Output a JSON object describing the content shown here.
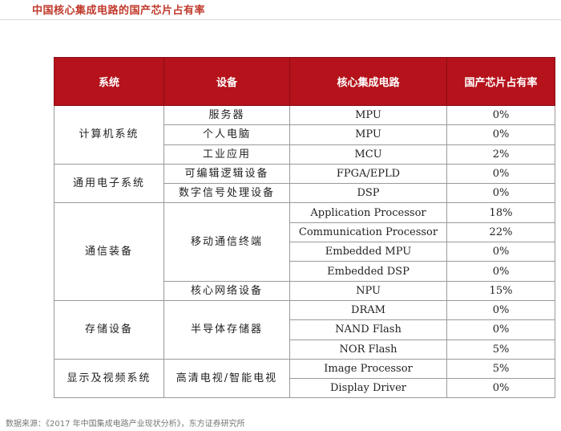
{
  "title": "中国核心集成电路的国产芯片占有率",
  "headers": [
    "系统",
    "设备",
    "核心集成电路",
    "国产芯片占有率"
  ],
  "groups": [
    {
      "system": "计算机系统",
      "devices": [
        {
          "device": "服务器",
          "chips": [
            {
              "ic": "MPU",
              "share": "0%"
            }
          ]
        },
        {
          "device": "个人电脑",
          "chips": [
            {
              "ic": "MPU",
              "share": "0%"
            }
          ]
        },
        {
          "device": "工业应用",
          "chips": [
            {
              "ic": "MCU",
              "share": "2%"
            }
          ]
        }
      ]
    },
    {
      "system": "通用电子系统",
      "devices": [
        {
          "device": "可编辑逻辑设备",
          "chips": [
            {
              "ic": "FPGA/EPLD",
              "share": "0%"
            }
          ]
        },
        {
          "device": "数字信号处理设备",
          "chips": [
            {
              "ic": "DSP",
              "share": "0%"
            }
          ]
        }
      ]
    },
    {
      "system": "通信装备",
      "devices": [
        {
          "device": "移动通信终端",
          "chips": [
            {
              "ic": "Application Processor",
              "share": "18%"
            },
            {
              "ic": "Communication Processor",
              "share": "22%"
            },
            {
              "ic": "Embedded MPU",
              "share": "0%"
            },
            {
              "ic": "Embedded DSP",
              "share": "0%"
            }
          ]
        },
        {
          "device": "核心网络设备",
          "chips": [
            {
              "ic": "NPU",
              "share": "15%"
            }
          ]
        }
      ]
    },
    {
      "system": "存储设备",
      "devices": [
        {
          "device": "半导体存储器",
          "chips": [
            {
              "ic": "DRAM",
              "share": "0%"
            },
            {
              "ic": "NAND Flash",
              "share": "0%"
            },
            {
              "ic": "NOR Flash",
              "share": "5%"
            }
          ]
        }
      ]
    },
    {
      "system": "显示及视频系统",
      "devices": [
        {
          "device": "高清电视/智能电视",
          "chips": [
            {
              "ic": "Image Processor",
              "share": "5%"
            },
            {
              "ic": "Display Driver",
              "share": "0%"
            }
          ]
        }
      ]
    }
  ],
  "source": "数据来源：《2017 年中国集成电路产业现状分析》，东方证券研究所"
}
